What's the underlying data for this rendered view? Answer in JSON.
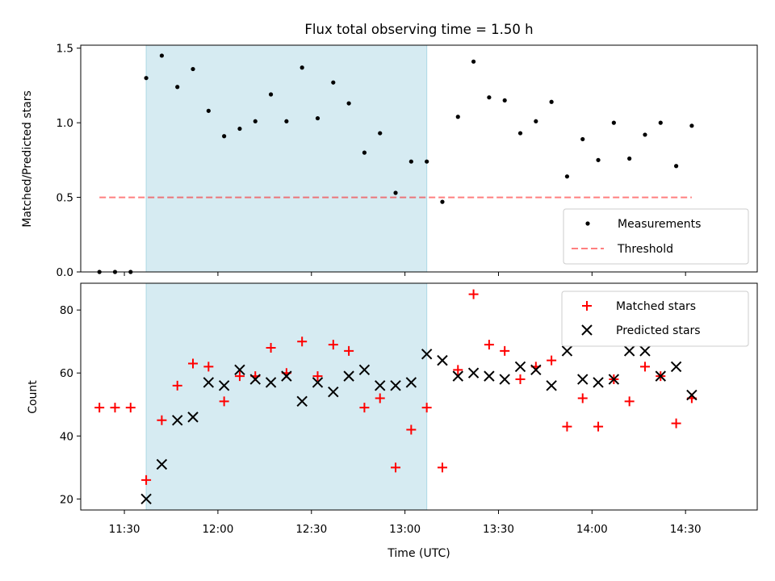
{
  "chart_data": {
    "title": "Flux total observing time = 1.50 h",
    "xlabel": "Time (UTC)",
    "x_unit": "HH:MM UTC",
    "xlim": [
      "11:16",
      "14:53"
    ],
    "xticks": [
      "11:30",
      "12:00",
      "12:30",
      "13:00",
      "13:30",
      "14:00",
      "14:30"
    ],
    "shaded_region": {
      "x": [
        "11:37",
        "13:07"
      ],
      "color": "#add8e6"
    },
    "colors": {
      "measurement": "#000000",
      "threshold": "#ff0000",
      "matched": "#ff0000",
      "predicted": "#000000",
      "shade": "#add8e6"
    },
    "top": {
      "type": "scatter",
      "ylabel": "Matched/Predicted stars",
      "ylim": [
        0,
        1.52
      ],
      "yticks": [
        "0.0",
        "0.5",
        "1.0",
        "1.5"
      ],
      "threshold": {
        "y": 0.5,
        "x": [
          "11:22",
          "14:32"
        ]
      },
      "legend": {
        "position": "lower right",
        "measurements": "Measurements",
        "threshold": "Threshold"
      },
      "points": [
        [
          "11:22",
          0
        ],
        [
          "11:27",
          0
        ],
        [
          "11:32",
          0
        ],
        [
          "11:37",
          1.3
        ],
        [
          "11:42",
          1.45
        ],
        [
          "11:47",
          1.24
        ],
        [
          "11:52",
          1.36
        ],
        [
          "11:57",
          1.08
        ],
        [
          "12:02",
          0.91
        ],
        [
          "12:07",
          0.96
        ],
        [
          "12:12",
          1.01
        ],
        [
          "12:17",
          1.19
        ],
        [
          "12:22",
          1.01
        ],
        [
          "12:27",
          1.37
        ],
        [
          "12:32",
          1.03
        ],
        [
          "12:37",
          1.27
        ],
        [
          "12:42",
          1.13
        ],
        [
          "12:47",
          0.8
        ],
        [
          "12:52",
          0.93
        ],
        [
          "12:57",
          0.53
        ],
        [
          "13:02",
          0.74
        ],
        [
          "13:07",
          0.74
        ],
        [
          "13:12",
          0.47
        ],
        [
          "13:17",
          1.04
        ],
        [
          "13:22",
          1.41
        ],
        [
          "13:27",
          1.17
        ],
        [
          "13:32",
          1.15
        ],
        [
          "13:37",
          0.93
        ],
        [
          "13:42",
          1.01
        ],
        [
          "13:47",
          1.14
        ],
        [
          "13:52",
          0.64
        ],
        [
          "13:57",
          0.89
        ],
        [
          "14:02",
          0.75
        ],
        [
          "14:07",
          1.0
        ],
        [
          "14:12",
          0.76
        ],
        [
          "14:17",
          0.92
        ],
        [
          "14:22",
          1.0
        ],
        [
          "14:27",
          0.71
        ],
        [
          "14:32",
          0.98
        ]
      ]
    },
    "bottom": {
      "type": "scatter",
      "ylabel": "Count",
      "ylim": [
        16.5,
        88.5
      ],
      "yticks": [
        "20",
        "40",
        "60",
        "80"
      ],
      "legend": {
        "position": "upper right",
        "matched": "Matched stars",
        "predicted": "Predicted stars"
      },
      "matched": [
        [
          "11:22",
          49
        ],
        [
          "11:27",
          49
        ],
        [
          "11:32",
          49
        ],
        [
          "11:37",
          26
        ],
        [
          "11:42",
          45
        ],
        [
          "11:47",
          56
        ],
        [
          "11:52",
          63
        ],
        [
          "11:57",
          62
        ],
        [
          "12:02",
          51
        ],
        [
          "12:07",
          59
        ],
        [
          "12:12",
          59
        ],
        [
          "12:17",
          68
        ],
        [
          "12:22",
          60
        ],
        [
          "12:27",
          70
        ],
        [
          "12:32",
          59
        ],
        [
          "12:37",
          69
        ],
        [
          "12:42",
          67
        ],
        [
          "12:47",
          49
        ],
        [
          "12:52",
          52
        ],
        [
          "12:57",
          30
        ],
        [
          "13:02",
          42
        ],
        [
          "13:07",
          49
        ],
        [
          "13:12",
          30
        ],
        [
          "13:17",
          61
        ],
        [
          "13:22",
          85
        ],
        [
          "13:27",
          69
        ],
        [
          "13:32",
          67
        ],
        [
          "13:37",
          58
        ],
        [
          "13:42",
          62
        ],
        [
          "13:47",
          64
        ],
        [
          "13:52",
          43
        ],
        [
          "13:57",
          52
        ],
        [
          "14:02",
          43
        ],
        [
          "14:07",
          58
        ],
        [
          "14:12",
          51
        ],
        [
          "14:17",
          62
        ],
        [
          "14:22",
          59
        ],
        [
          "14:27",
          44
        ],
        [
          "14:32",
          52
        ]
      ],
      "predicted": [
        [
          "11:37",
          20
        ],
        [
          "11:42",
          31
        ],
        [
          "11:47",
          45
        ],
        [
          "11:52",
          46
        ],
        [
          "11:57",
          57
        ],
        [
          "12:02",
          56
        ],
        [
          "12:07",
          61
        ],
        [
          "12:12",
          58
        ],
        [
          "12:17",
          57
        ],
        [
          "12:22",
          59
        ],
        [
          "12:27",
          51
        ],
        [
          "12:32",
          57
        ],
        [
          "12:37",
          54
        ],
        [
          "12:42",
          59
        ],
        [
          "12:47",
          61
        ],
        [
          "12:52",
          56
        ],
        [
          "12:57",
          56
        ],
        [
          "13:02",
          57
        ],
        [
          "13:07",
          66
        ],
        [
          "13:12",
          64
        ],
        [
          "13:17",
          59
        ],
        [
          "13:22",
          60
        ],
        [
          "13:27",
          59
        ],
        [
          "13:32",
          58
        ],
        [
          "13:37",
          62
        ],
        [
          "13:42",
          61
        ],
        [
          "13:47",
          56
        ],
        [
          "13:52",
          67
        ],
        [
          "13:57",
          58
        ],
        [
          "14:02",
          57
        ],
        [
          "14:07",
          58
        ],
        [
          "14:12",
          67
        ],
        [
          "14:17",
          67
        ],
        [
          "14:22",
          59
        ],
        [
          "14:27",
          62
        ],
        [
          "14:32",
          53
        ]
      ]
    }
  }
}
